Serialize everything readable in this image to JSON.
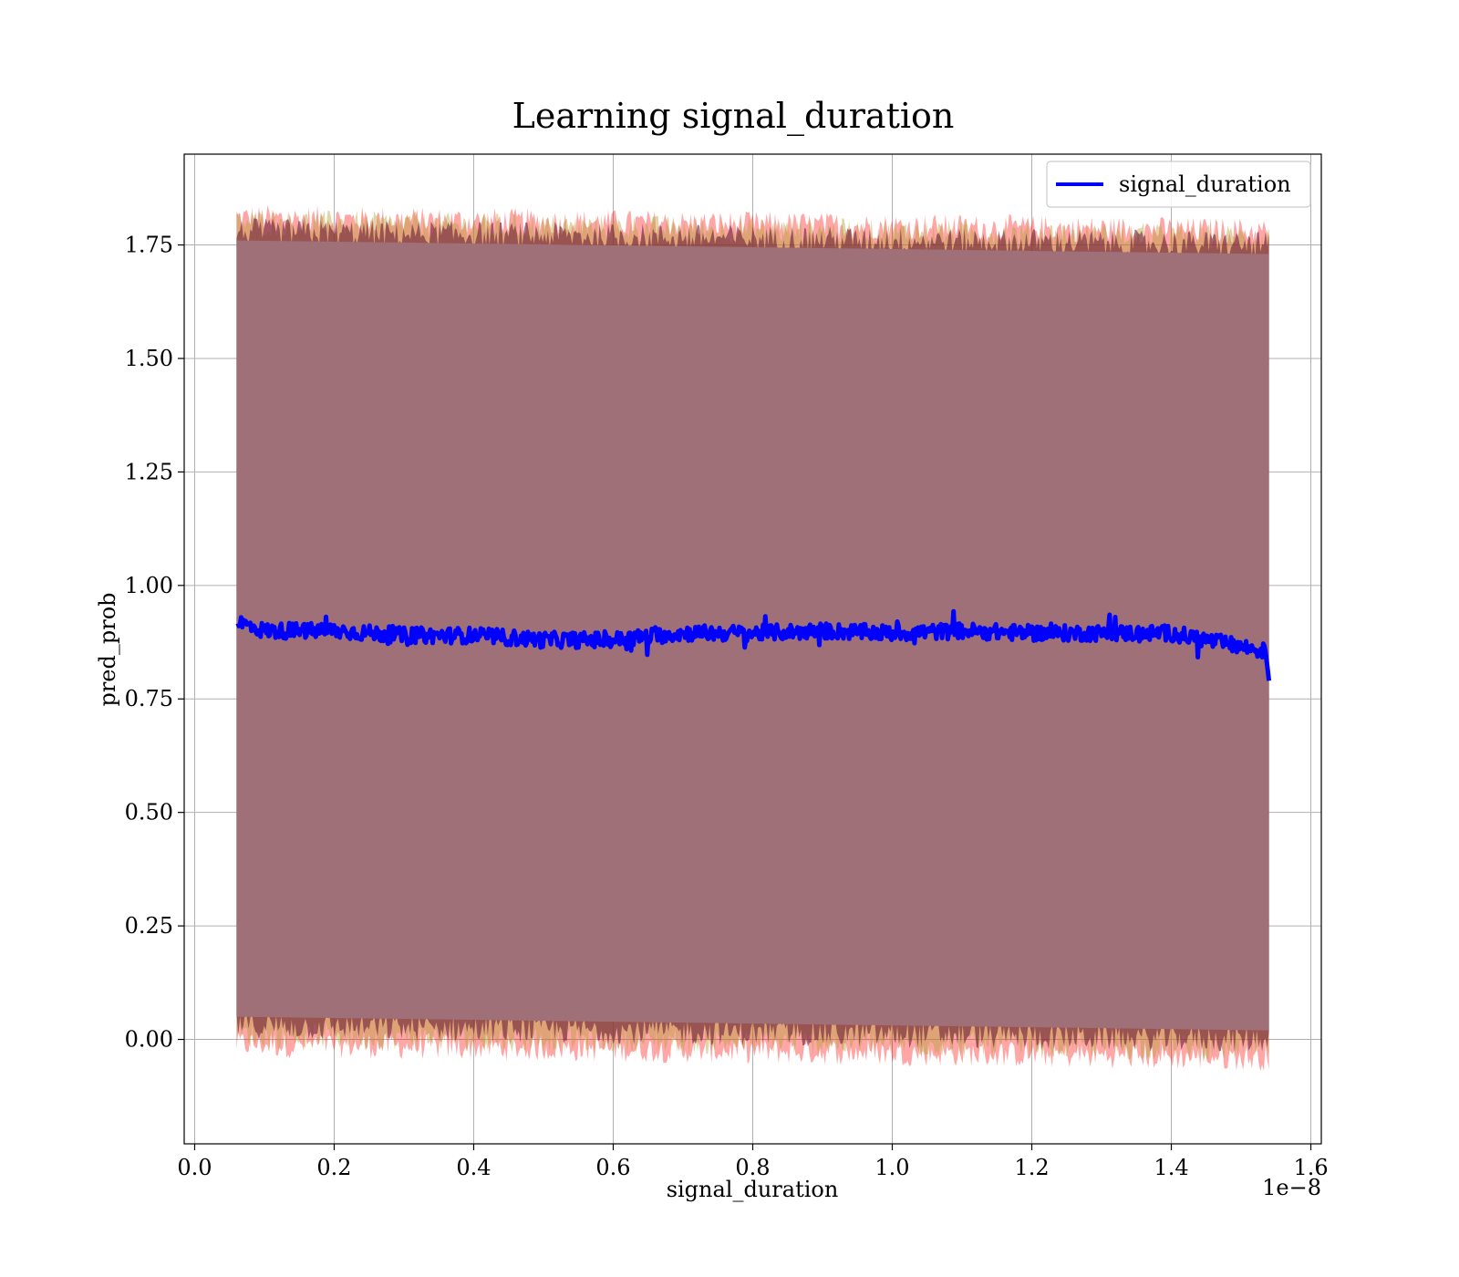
{
  "chart_data": {
    "type": "line",
    "title": "Learning signal_duration",
    "xlabel": "signal_duration",
    "ylabel": "pred_prob",
    "x_offset_label": "1e−8",
    "xlim": [
      -1.5e-10,
      1.615e-08
    ],
    "ylim": [
      -0.23,
      1.95
    ],
    "x_ticks": [
      0.0,
      2e-09,
      4e-09,
      6e-09,
      8e-09,
      1e-08,
      1.2e-08,
      1.4e-08,
      1.6e-08
    ],
    "x_tick_labels": [
      "0.0",
      "0.2",
      "0.4",
      "0.6",
      "0.8",
      "1.0",
      "1.2",
      "1.4",
      "1.6"
    ],
    "y_ticks": [
      0.0,
      0.25,
      0.5,
      0.75,
      1.0,
      1.25,
      1.5,
      1.75
    ],
    "y_tick_labels": [
      "0.00",
      "0.25",
      "0.50",
      "0.75",
      "1.00",
      "1.25",
      "1.50",
      "1.75"
    ],
    "grid": true,
    "legend_position": "top-right",
    "series": [
      {
        "name": "signal_duration",
        "color": "#0000ff",
        "x": [
          6e-10,
          1e-09,
          2e-09,
          3e-09,
          4e-09,
          5e-09,
          6e-09,
          7e-09,
          8e-09,
          9e-09,
          1e-08,
          1.1e-08,
          1.2e-08,
          1.3e-08,
          1.4e-08,
          1.45e-08,
          1.5e-08,
          1.535e-08,
          1.54e-08
        ],
        "values": [
          0.92,
          0.9,
          0.9,
          0.89,
          0.89,
          0.88,
          0.88,
          0.895,
          0.895,
          0.9,
          0.895,
          0.9,
          0.895,
          0.895,
          0.895,
          0.88,
          0.865,
          0.855,
          0.79
        ]
      }
    ],
    "bands": [
      {
        "color": "#ff0000",
        "opacity": 0.35,
        "x": [
          6e-10,
          1.54e-08
        ],
        "lower": [
          -0.01,
          -0.04
        ],
        "upper": [
          1.81,
          1.78
        ]
      },
      {
        "color": "#b8a23c",
        "opacity": 0.45,
        "x": [
          6e-10,
          1.54e-08
        ],
        "lower": [
          0.01,
          -0.02
        ],
        "upper": [
          1.8,
          1.765
        ]
      },
      {
        "color": "#6a1f3a",
        "opacity": 0.6,
        "x": [
          6e-10,
          1.54e-08
        ],
        "lower": [
          0.03,
          0.0
        ],
        "upper": [
          1.78,
          1.75
        ]
      }
    ]
  },
  "colors": {
    "line": "#0000ff",
    "band_fill": "#a07078",
    "grid": "#b0b0b0",
    "axis": "#000000"
  }
}
